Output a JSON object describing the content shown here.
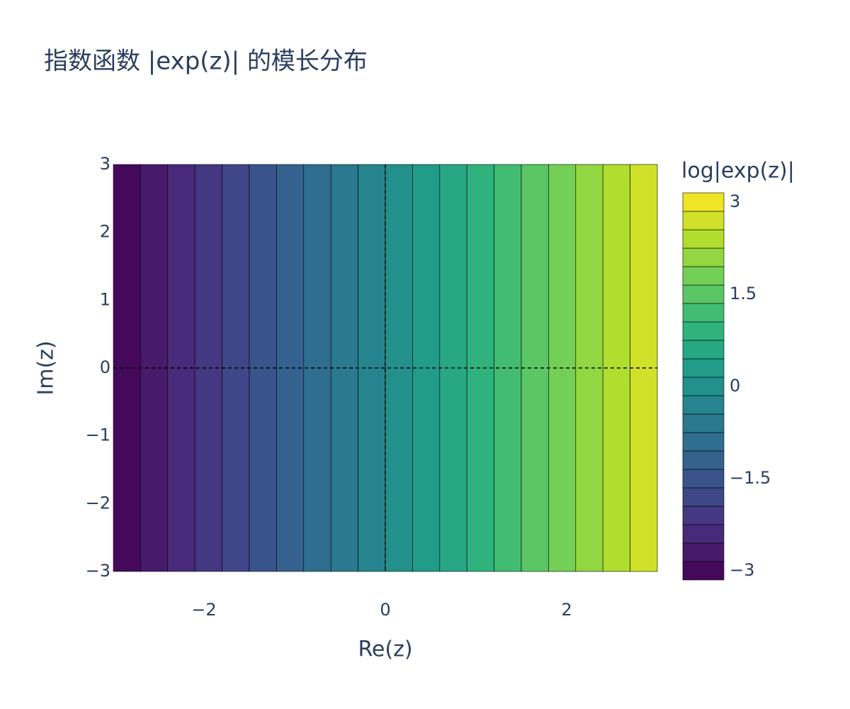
{
  "chart_data": {
    "type": "contour",
    "title": "指数函数 |exp(z)| 的模长分布",
    "x_label": "Re(z)",
    "y_label": "Im(z)",
    "x": [
      -3,
      -2.7,
      -2.4,
      -2.1,
      -1.8,
      -1.5,
      -1.2,
      -0.9,
      -0.6,
      -0.3,
      0,
      0.3,
      0.6,
      0.9,
      1.2,
      1.5,
      1.8,
      2.1,
      2.4,
      2.7,
      3
    ],
    "y": [
      -3,
      3
    ],
    "z": [
      [
        -3,
        -2.7,
        -2.4,
        -2.1,
        -1.8,
        -1.5,
        -1.2,
        -0.9,
        -0.6,
        -0.3,
        0,
        0.3,
        0.6,
        0.9,
        1.2,
        1.5,
        1.8,
        2.1,
        2.4,
        2.7,
        3
      ],
      [
        -3,
        -2.7,
        -2.4,
        -2.1,
        -1.8,
        -1.5,
        -1.2,
        -0.9,
        -0.6,
        -0.3,
        0,
        0.3,
        0.6,
        0.9,
        1.2,
        1.5,
        1.8,
        2.1,
        2.4,
        2.7,
        3
      ]
    ],
    "contours": {
      "start": -3,
      "end": 3,
      "size": 0.3
    },
    "colorscale": [
      "#440154",
      "#482878",
      "#3e4989",
      "#31688e",
      "#26828e",
      "#1f9e89",
      "#35b779",
      "#6ece58",
      "#b5de2b",
      "#fde725"
    ],
    "xlim": [
      -3,
      3
    ],
    "ylim": [
      -3,
      3
    ],
    "xticks": [
      {
        "value": -2,
        "label": "−2"
      },
      0,
      2
    ],
    "yticks": [
      {
        "value": -3,
        "label": "−3"
      },
      {
        "value": -2,
        "label": "−2"
      },
      {
        "value": -1,
        "label": "−1"
      },
      0,
      1,
      2,
      3
    ],
    "reference_lines": [
      {
        "axis": "x",
        "value": 0
      },
      {
        "axis": "y",
        "value": 0
      }
    ],
    "colorbar": {
      "title": "log|exp(z)|",
      "range": [
        -3.15,
        3.15
      ],
      "ticks": [
        {
          "value": -3,
          "label": "−3"
        },
        {
          "value": -1.5,
          "label": "−1.5"
        },
        0,
        1.5,
        3
      ]
    }
  }
}
